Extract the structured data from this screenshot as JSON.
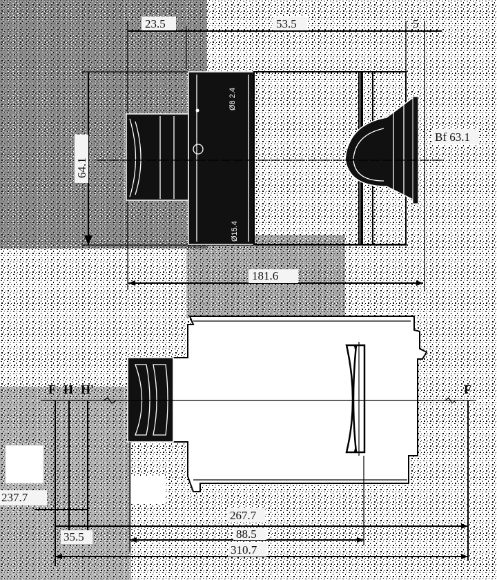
{
  "diagram": {
    "top_view": {
      "dimensions": {
        "dim_a": "23.5",
        "dim_b": "53.5",
        "dim_c": "5",
        "dim_height": "64.1",
        "dim_total": "181.6",
        "back_focus": "Bf 63.1"
      },
      "side_text": [
        "Ø8 2.4",
        "Ø15.4"
      ]
    },
    "bottom_view": {
      "points": {
        "f_front": "F",
        "h_front": "H",
        "h_prime": "H'",
        "f_back": "F"
      },
      "dimensions": {
        "dim_237": "237.7",
        "dim_35": "35.5",
        "dim_267": "267.7",
        "dim_88": "88.5",
        "dim_310": "310.7"
      }
    }
  }
}
